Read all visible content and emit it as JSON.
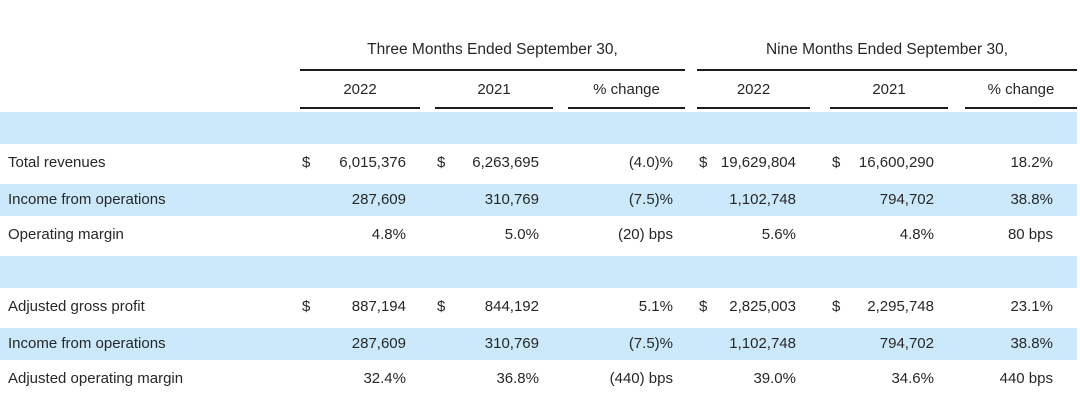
{
  "table": {
    "currency_symbol": "$",
    "colors": {
      "row_highlight": "#cbe9fb",
      "text": "#272727",
      "rule": "#1c1c1c"
    },
    "sections": [
      {
        "title": "Three Months Ended September 30,",
        "columns": [
          "2022",
          "2021",
          "% change"
        ]
      },
      {
        "title": "Nine Months Ended September 30,",
        "columns": [
          "2022",
          "2021",
          "% change"
        ]
      }
    ],
    "rows": [
      {
        "label": "",
        "highlighted": true,
        "dollar": false,
        "cells": [
          "",
          "",
          "",
          "",
          "",
          ""
        ]
      },
      {
        "label": "Total revenues",
        "highlighted": false,
        "dollar": true,
        "cells": [
          "6,015,376",
          "6,263,695",
          "(4.0)%",
          "19,629,804",
          "16,600,290",
          "18.2%"
        ]
      },
      {
        "label": "Income from operations",
        "highlighted": true,
        "dollar": false,
        "cells": [
          "287,609",
          "310,769",
          "(7.5)%",
          "1,102,748",
          "794,702",
          "38.8%"
        ]
      },
      {
        "label": "Operating margin",
        "highlighted": false,
        "dollar": false,
        "cells": [
          "4.8%",
          "5.0%",
          "(20) bps",
          "5.6%",
          "4.8%",
          "80 bps"
        ]
      },
      {
        "label": "",
        "highlighted": true,
        "dollar": false,
        "cells": [
          "",
          "",
          "",
          "",
          "",
          ""
        ]
      },
      {
        "label": "Adjusted gross profit",
        "highlighted": false,
        "dollar": true,
        "cells": [
          "887,194",
          "844,192",
          "5.1%",
          "2,825,003",
          "2,295,748",
          "23.1%"
        ]
      },
      {
        "label": "Income from operations",
        "highlighted": true,
        "dollar": false,
        "cells": [
          "287,609",
          "310,769",
          "(7.5)%",
          "1,102,748",
          "794,702",
          "38.8%"
        ]
      },
      {
        "label": "Adjusted operating margin",
        "highlighted": false,
        "dollar": false,
        "cells": [
          "32.4%",
          "36.8%",
          "(440) bps",
          "39.0%",
          "34.6%",
          "440 bps"
        ]
      }
    ]
  }
}
